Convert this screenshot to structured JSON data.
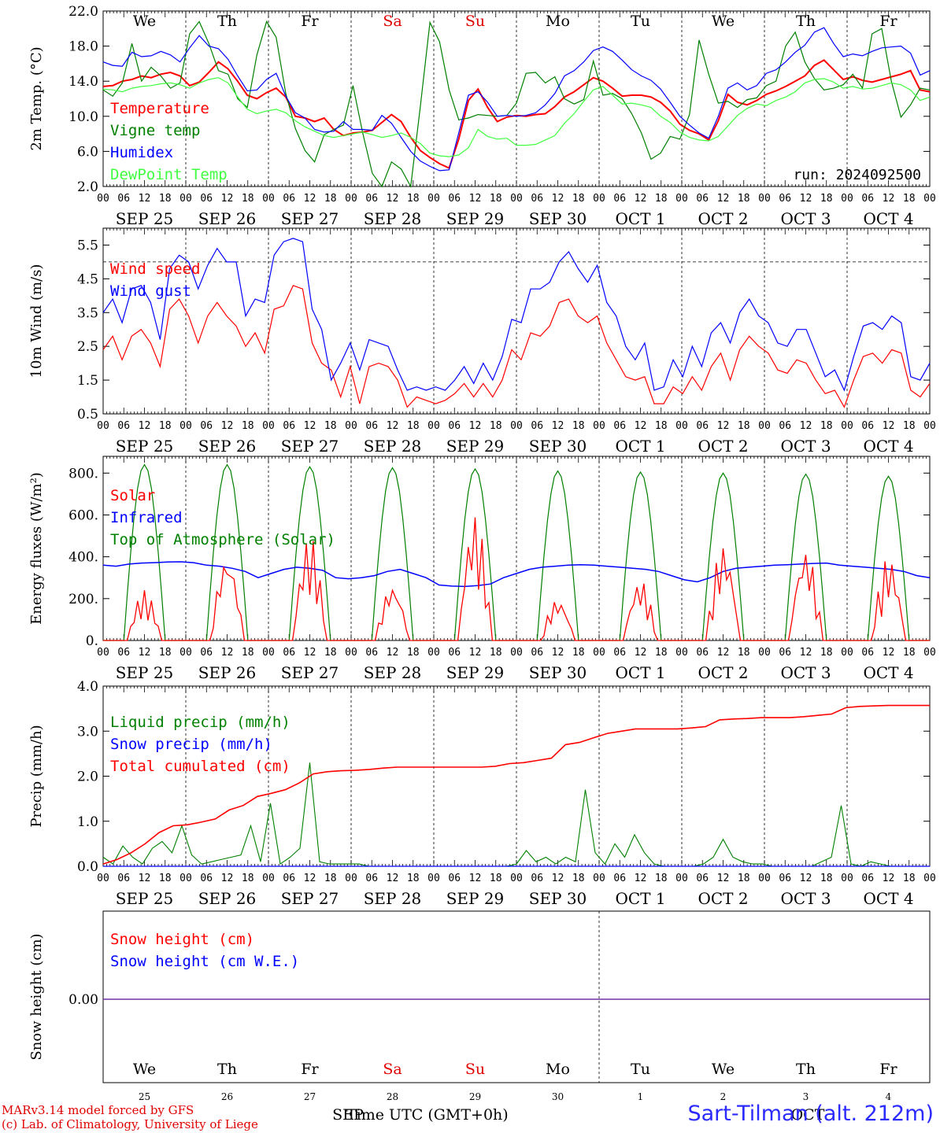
{
  "footer": {
    "model_line": "MARv3.14 model forced by GFS",
    "copyright_line": "(c) Lab. of Climatology, University of Liege",
    "xaxis_title": "Time UTC (GMT+0h)",
    "location": "Sart-Tilman (alt. 212m)"
  },
  "time_axis": {
    "hour_ticks": [
      "00",
      "06",
      "12",
      "18"
    ],
    "day_labels": [
      "SEP 25",
      "SEP 26",
      "SEP 27",
      "SEP 28",
      "SEP 29",
      "SEP 30",
      "OCT  1",
      "OCT  2",
      "OCT  3",
      "OCT  4"
    ],
    "weekdays": [
      "We",
      "Th",
      "Fr",
      "Sa",
      "Su",
      "Mo",
      "Tu",
      "We",
      "Th",
      "Fr"
    ],
    "weekend_color": "#e00000",
    "day_numbers": [
      "25",
      "26",
      "27",
      "28",
      "29",
      "30",
      "1",
      "2",
      "3",
      "4"
    ],
    "month_labels_bottom": [
      "SEP",
      "OCT"
    ]
  },
  "chart_data": [
    {
      "type": "line",
      "ylabel": "2m Temp. (°C)",
      "ylim": [
        2,
        22
      ],
      "yticks": [
        "2.0",
        "6.0",
        "10.0",
        "14.0",
        "18.0",
        "22.0"
      ],
      "annotation": "run: 2024092500",
      "series": [
        {
          "name": "Temperature",
          "color": "#ff0000",
          "values": [
            13.4,
            13.5,
            14.0,
            14.2,
            14.6,
            14.4,
            14.8,
            15.0,
            14.6,
            13.5,
            13.9,
            15.0,
            16.2,
            15.4,
            14.0,
            12.4,
            12.0,
            12.7,
            13.2,
            12.2,
            10.0,
            9.8,
            9.4,
            9.8,
            8.5,
            7.8,
            8.1,
            8.2,
            8.4,
            9.3,
            10.2,
            9.4,
            7.6,
            6.1,
            5.3,
            4.6,
            4.1,
            7.4,
            11.8,
            13.1,
            11.0,
            9.4,
            9.9,
            10.1,
            10.0,
            10.2,
            10.3,
            11.1,
            12.2,
            12.8,
            13.6,
            14.4,
            14.0,
            13.2,
            12.3,
            12.4,
            12.4,
            12.2,
            11.6,
            10.6,
            9.1,
            8.4,
            8.0,
            7.3,
            9.5,
            12.5,
            11.6,
            11.3,
            11.8,
            12.5,
            12.9,
            13.4,
            14.0,
            14.6,
            15.8,
            16.4,
            15.3,
            14.2,
            14.5,
            14.1,
            13.9,
            14.2,
            14.5,
            14.8,
            15.2,
            13.0,
            12.8
          ]
        },
        {
          "name": "Vigne temp",
          "color": "#008000",
          "values": [
            13.0,
            12.3,
            13.8,
            18.3,
            14.0,
            15.6,
            14.6,
            13.2,
            13.8,
            19.4,
            20.8,
            18.3,
            15.2,
            14.8,
            12.0,
            11.0,
            17.0,
            20.8,
            19.0,
            12.6,
            8.6,
            6.1,
            4.8,
            7.9,
            8.5,
            9.0,
            13.5,
            8.1,
            3.5,
            2.0,
            4.8,
            4.0,
            2.0,
            11.1,
            20.7,
            18.5,
            13.0,
            9.6,
            9.8,
            10.2,
            10.1,
            10.0,
            10.1,
            11.5,
            14.9,
            15.0,
            13.8,
            14.5,
            12.0,
            11.4,
            11.9,
            16.3,
            12.4,
            12.6,
            12.0,
            10.3,
            8.1,
            5.1,
            5.8,
            7.7,
            7.4,
            10.2,
            18.7,
            14.8,
            11.5,
            11.7,
            11.0,
            11.9,
            12.1,
            13.5,
            14.0,
            18.0,
            19.6,
            16.2,
            14.3,
            13.0,
            13.2,
            13.6,
            14.8,
            13.2,
            19.4,
            20.0,
            14.0,
            9.9,
            11.3,
            13.2,
            13.0
          ]
        },
        {
          "name": "Humidex",
          "color": "#0000ff",
          "values": [
            16.2,
            15.8,
            15.7,
            17.3,
            16.8,
            16.9,
            17.4,
            17.0,
            16.2,
            17.8,
            19.2,
            18.0,
            17.7,
            16.5,
            14.6,
            12.9,
            13.0,
            14.2,
            14.9,
            12.3,
            10.4,
            9.8,
            8.5,
            8.2,
            8.3,
            9.4,
            8.5,
            8.5,
            8.4,
            10.1,
            9.2,
            7.6,
            6.0,
            4.9,
            4.3,
            3.8,
            3.9,
            8.1,
            12.4,
            12.8,
            11.6,
            10.0,
            10.1,
            10.0,
            10.1,
            10.4,
            11.3,
            12.6,
            14.6,
            15.2,
            16.2,
            17.5,
            17.9,
            17.4,
            16.4,
            15.3,
            14.6,
            14.1,
            13.1,
            11.6,
            10.0,
            9.0,
            8.1,
            7.5,
            10.0,
            13.2,
            13.8,
            13.0,
            13.5,
            14.9,
            15.3,
            16.2,
            17.3,
            18.1,
            19.6,
            20.1,
            18.3,
            16.8,
            17.1,
            16.9,
            17.4,
            17.8,
            17.9,
            18.0,
            17.2,
            14.7,
            15.2
          ]
        },
        {
          "name": "DewPoint Temp",
          "color": "#40ff40",
          "values": [
            13.1,
            13.0,
            12.8,
            13.2,
            13.4,
            13.5,
            13.7,
            13.8,
            13.6,
            13.2,
            13.8,
            14.2,
            14.4,
            13.8,
            12.2,
            10.8,
            10.3,
            10.6,
            10.8,
            10.4,
            9.5,
            8.8,
            8.3,
            7.8,
            7.6,
            7.8,
            8.0,
            8.2,
            7.9,
            7.6,
            7.8,
            8.1,
            7.6,
            6.9,
            5.8,
            5.5,
            5.4,
            5.6,
            6.4,
            8.5,
            7.7,
            7.4,
            7.5,
            6.7,
            6.7,
            6.8,
            7.3,
            7.8,
            9.2,
            10.3,
            11.7,
            13.0,
            13.4,
            12.4,
            11.4,
            11.5,
            11.3,
            11.0,
            10.0,
            9.3,
            8.2,
            7.6,
            7.3,
            7.2,
            7.7,
            8.9,
            10.1,
            10.9,
            11.4,
            11.2,
            11.8,
            12.2,
            12.8,
            13.8,
            14.2,
            14.3,
            13.9,
            13.2,
            13.4,
            13.1,
            13.2,
            13.5,
            13.8,
            13.6,
            13.0,
            11.8,
            12.2
          ]
        }
      ]
    },
    {
      "type": "line",
      "ylabel": "10m Wind (m/s)",
      "ylim": [
        0.5,
        6.0
      ],
      "yticks": [
        "0.5",
        "1.5",
        "2.5",
        "3.5",
        "4.5",
        "5.5"
      ],
      "reference_line": 5.0,
      "series": [
        {
          "name": "Wind speed",
          "color": "#ff0000",
          "values": [
            2.4,
            2.8,
            2.1,
            2.8,
            3.0,
            2.6,
            1.9,
            3.6,
            3.9,
            3.4,
            2.6,
            3.4,
            3.8,
            3.4,
            3.1,
            2.5,
            2.9,
            2.3,
            3.6,
            3.7,
            4.3,
            4.2,
            2.6,
            2.0,
            1.8,
            1.0,
            1.9,
            0.8,
            1.9,
            2.0,
            1.9,
            1.5,
            0.7,
            1.0,
            0.9,
            0.8,
            0.9,
            1.1,
            1.4,
            1.0,
            1.4,
            1.0,
            1.5,
            2.4,
            2.1,
            2.9,
            2.8,
            3.1,
            3.8,
            3.9,
            3.4,
            3.2,
            3.4,
            2.6,
            2.1,
            1.6,
            1.5,
            1.6,
            0.8,
            0.8,
            1.3,
            1.1,
            1.6,
            1.2,
            1.9,
            2.3,
            1.5,
            2.4,
            2.8,
            2.5,
            2.3,
            1.8,
            1.7,
            2.1,
            2.0,
            1.5,
            1.1,
            1.2,
            0.7,
            1.5,
            2.2,
            2.3,
            2.0,
            2.4,
            2.3,
            1.2,
            1.0,
            1.4
          ]
        },
        {
          "name": "Wind gust",
          "color": "#0000ff",
          "values": [
            3.5,
            3.9,
            3.2,
            4.2,
            4.3,
            3.8,
            2.7,
            4.8,
            5.2,
            5.0,
            4.2,
            4.9,
            5.4,
            5.0,
            5.0,
            3.4,
            3.9,
            3.8,
            5.2,
            5.6,
            5.7,
            5.6,
            3.6,
            3.0,
            1.5,
            2.0,
            2.6,
            1.8,
            2.7,
            2.6,
            2.5,
            1.8,
            1.2,
            1.3,
            1.2,
            1.3,
            1.2,
            1.5,
            1.9,
            1.4,
            2.0,
            1.5,
            2.2,
            3.3,
            3.2,
            4.2,
            4.2,
            4.4,
            5.0,
            5.3,
            4.8,
            4.4,
            4.9,
            3.8,
            3.4,
            2.5,
            2.1,
            2.6,
            1.2,
            1.3,
            2.1,
            1.6,
            2.5,
            1.9,
            2.9,
            3.2,
            2.6,
            3.5,
            3.9,
            3.4,
            3.2,
            2.6,
            2.5,
            3.0,
            3.0,
            2.3,
            1.6,
            1.8,
            1.2,
            2.2,
            3.1,
            3.2,
            3.0,
            3.4,
            3.2,
            1.6,
            1.5,
            2.0
          ]
        }
      ]
    },
    {
      "type": "line",
      "ylabel": "Energy fluxes (W/m²)",
      "ylim": [
        0,
        880
      ],
      "yticks": [
        "0.",
        "200.",
        "400.",
        "600.",
        "800."
      ],
      "series": [
        {
          "name": "Solar",
          "color": "#ff0000",
          "peaks": [
            240,
            410,
            500,
            270,
            600,
            200,
            290,
            460,
            440,
            400
          ]
        },
        {
          "name": "Infrared",
          "color": "#0000ff",
          "values": [
            360,
            355,
            365,
            370,
            372,
            375,
            376,
            372,
            360,
            355,
            345,
            330,
            300,
            320,
            340,
            350,
            345,
            335,
            300,
            295,
            300,
            310,
            330,
            340,
            320,
            300,
            265,
            260,
            258,
            262,
            270,
            300,
            320,
            340,
            350,
            355,
            360,
            362,
            360,
            355,
            350,
            345,
            340,
            330,
            310,
            290,
            280,
            300,
            330,
            345,
            350,
            355,
            360,
            362,
            365,
            368,
            370,
            360,
            355,
            350,
            345,
            340,
            330,
            310,
            300
          ]
        },
        {
          "name": "Top of Atmosphere (Solar)",
          "color": "#008000",
          "peaks": [
            840,
            840,
            830,
            825,
            820,
            810,
            805,
            800,
            795,
            785
          ]
        }
      ]
    },
    {
      "type": "line",
      "ylabel": "Precip (mm/h)",
      "ylim": [
        0,
        4
      ],
      "yticks": [
        "0.0",
        "1.0",
        "2.0",
        "3.0",
        "4.0"
      ],
      "series": [
        {
          "name": "Liquid precip (mm/h)",
          "color": "#008000",
          "values": [
            0.2,
            0.05,
            0.45,
            0.2,
            0.05,
            0.4,
            0.55,
            0.3,
            0.9,
            0.25,
            0.05,
            0.1,
            0.15,
            0.2,
            0.25,
            0.9,
            0.1,
            1.4,
            0.05,
            0.2,
            0.4,
            2.3,
            0.1,
            0.05,
            0.05,
            0.05,
            0.05,
            0.0,
            0.0,
            0.0,
            0.0,
            0.0,
            0.0,
            0.0,
            0.0,
            0.0,
            0.0,
            0.0,
            0.0,
            0.0,
            0.0,
            0.0,
            0.05,
            0.35,
            0.1,
            0.2,
            0.05,
            0.2,
            0.1,
            1.7,
            0.3,
            0.05,
            0.5,
            0.2,
            0.7,
            0.3,
            0.05,
            0.0,
            0.0,
            0.0,
            0.0,
            0.05,
            0.2,
            0.6,
            0.2,
            0.1,
            0.05,
            0.05,
            0.0,
            0.0,
            0.0,
            0.0,
            0.0,
            0.1,
            0.2,
            1.35,
            0.05,
            0.0,
            0.1,
            0.05,
            0.0,
            0.0,
            0.0,
            0.0,
            0.0
          ]
        },
        {
          "name": "Snow precip (mm/h)",
          "color": "#0000ff",
          "values": [
            0,
            0
          ]
        },
        {
          "name": "Total cumulated (cm)",
          "color": "#ff0000",
          "values": [
            0.05,
            0.15,
            0.3,
            0.5,
            0.75,
            0.9,
            0.92,
            0.98,
            1.05,
            1.25,
            1.35,
            1.55,
            1.62,
            1.7,
            1.85,
            2.05,
            2.1,
            2.12,
            2.13,
            2.15,
            2.18,
            2.2,
            2.2,
            2.2,
            2.2,
            2.2,
            2.2,
            2.2,
            2.22,
            2.28,
            2.3,
            2.35,
            2.4,
            2.7,
            2.75,
            2.85,
            2.95,
            3.0,
            3.05,
            3.05,
            3.05,
            3.05,
            3.07,
            3.1,
            3.25,
            3.27,
            3.28,
            3.3,
            3.3,
            3.3,
            3.32,
            3.35,
            3.38,
            3.52,
            3.55,
            3.56,
            3.57,
            3.57,
            3.57,
            3.57
          ]
        }
      ]
    },
    {
      "type": "line",
      "ylabel": "Snow height (cm)",
      "yticks": [
        "0.00"
      ],
      "series": [
        {
          "name": "Snow height (cm)",
          "color": "#ff0000",
          "values": [
            0,
            0
          ]
        },
        {
          "name": "Snow height (cm W.E.)",
          "color": "#0000ff",
          "values": [
            0,
            0
          ]
        }
      ]
    }
  ]
}
